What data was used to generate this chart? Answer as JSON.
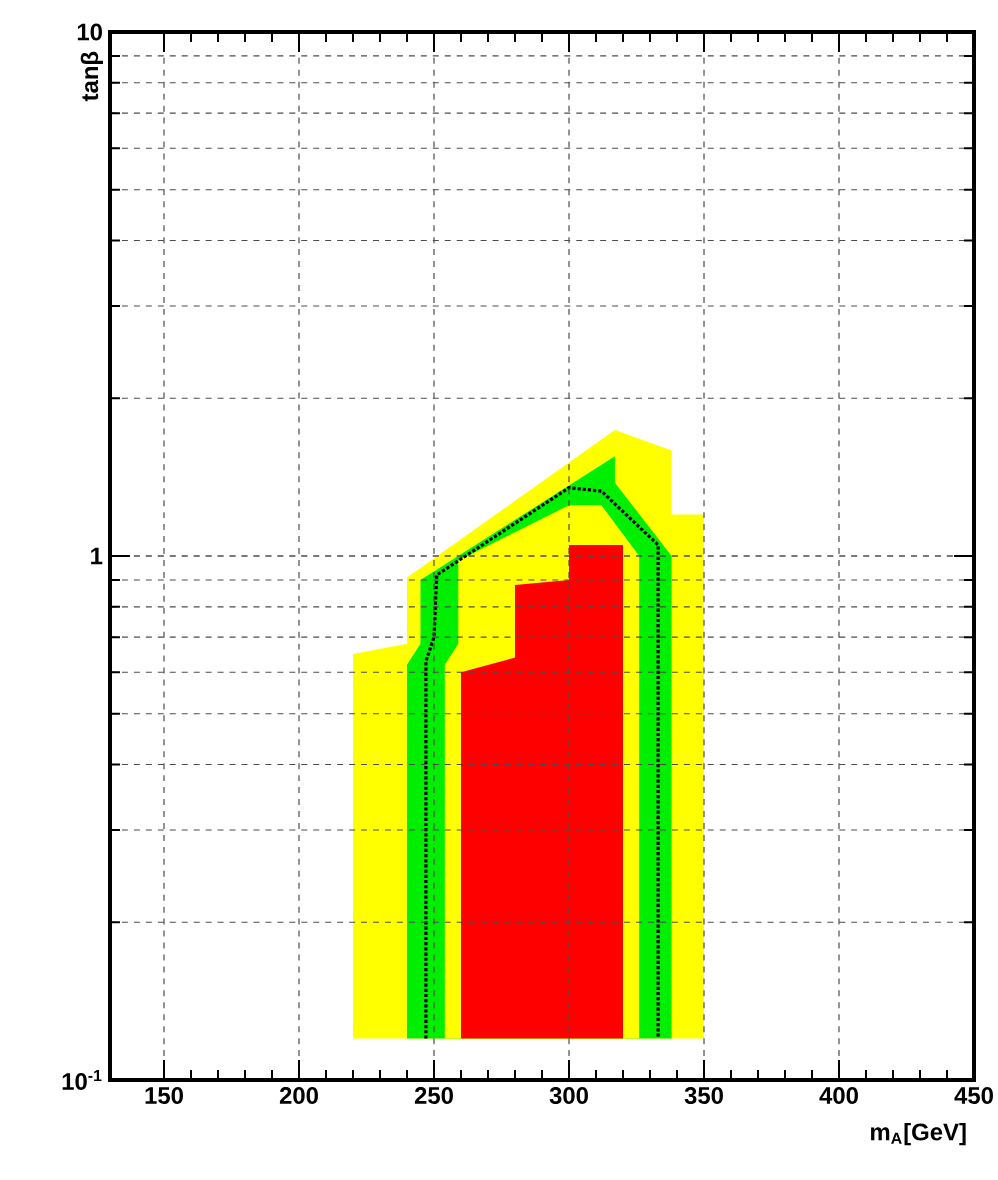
{
  "chart_data": {
    "type": "area",
    "xlabel": "m$_{A}$[GeV]",
    "ylabel": "tanβ",
    "log": "y",
    "grid": true,
    "xlim": [
      130,
      450
    ],
    "ylim": [
      0.1,
      10
    ],
    "xticks": [
      150,
      200,
      250,
      300,
      350,
      400,
      450
    ],
    "yticks": [
      {
        "value": 0.1,
        "label": "10$^{-1}$"
      },
      1,
      10
    ],
    "series": [
      {
        "color": "#ffff00",
        "x": [
          220,
          220,
          240,
          240,
          317,
          338,
          338,
          350,
          350
        ],
        "values": [
          0.12,
          0.65,
          0.68,
          0.91,
          1.74,
          1.59,
          1.2,
          1.2,
          0.12
        ]
      },
      {
        "color": "#00ee00",
        "x": [
          240,
          240,
          245,
          245,
          317,
          317,
          338,
          338
        ],
        "values": [
          0.12,
          0.62,
          0.68,
          0.9,
          1.55,
          1.38,
          1.0,
          0.12
        ]
      },
      {
        "color": "#ffff00",
        "x": [
          254,
          254,
          259,
          259,
          300,
          312,
          326,
          326
        ],
        "values": [
          0.12,
          0.62,
          0.68,
          0.98,
          1.25,
          1.25,
          1.0,
          0.12
        ]
      },
      {
        "color": "#ff0000",
        "x": [
          260,
          260,
          280,
          280,
          300,
          300,
          320,
          320
        ],
        "values": [
          0.12,
          0.6,
          0.64,
          0.88,
          0.9,
          1.05,
          1.05,
          0.12
        ]
      },
      {
        "type": "line",
        "color": "#000000",
        "line_style": "dotted",
        "x": [
          247,
          247,
          250,
          251,
          300,
          312,
          333,
          333
        ],
        "values": [
          0.12,
          0.63,
          0.7,
          0.92,
          1.35,
          1.33,
          1.05,
          0.12
        ]
      }
    ]
  }
}
